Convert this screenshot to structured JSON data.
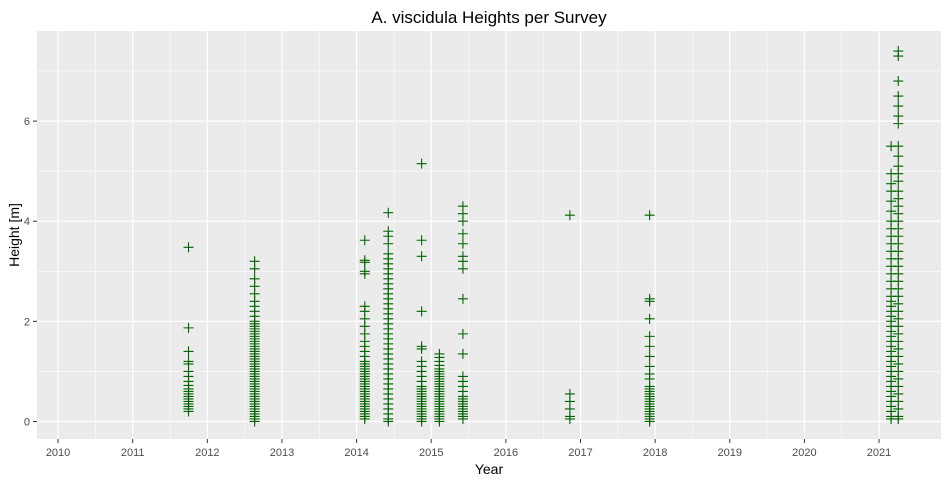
{
  "chart_data": {
    "type": "scatter",
    "title": "A. viscidula Heights per Survey",
    "xlabel": "Year",
    "ylabel": "Height [m]",
    "x_ticks": [
      "2010",
      "2011",
      "2012",
      "2013",
      "2014",
      "2015",
      "2016",
      "2017",
      "2018",
      "2019",
      "2020",
      "2021"
    ],
    "y_ticks": [
      "0",
      "2",
      "4",
      "6"
    ],
    "xlim": [
      "2009-09-20",
      "2021-10-31"
    ],
    "ylim": [
      -0.35,
      7.8
    ],
    "grid": true,
    "legend": "none",
    "marker": "plus",
    "point_color": "#006400",
    "panel_color": "#ebebeb",
    "surveys": [
      {
        "date": "2011-10-01",
        "heights": [
          3.48,
          1.87,
          1.4,
          1.2,
          1.15,
          1.0,
          0.9,
          0.8,
          0.72,
          0.65,
          0.6,
          0.55,
          0.5,
          0.45,
          0.4,
          0.35,
          0.3,
          0.25,
          0.2
        ]
      },
      {
        "date": "2012-08-20",
        "heights": [
          3.2,
          3.05,
          2.85,
          2.7,
          2.55,
          2.4,
          2.3,
          2.2,
          2.1,
          2.0,
          1.95,
          1.9,
          1.85,
          1.8,
          1.75,
          1.7,
          1.65,
          1.6,
          1.55,
          1.5,
          1.45,
          1.4,
          1.35,
          1.3,
          1.25,
          1.2,
          1.15,
          1.1,
          1.05,
          1.0,
          0.95,
          0.9,
          0.85,
          0.8,
          0.75,
          0.7,
          0.65,
          0.6,
          0.55,
          0.5,
          0.45,
          0.4,
          0.35,
          0.3,
          0.25,
          0.2,
          0.15,
          0.1,
          0.05,
          0.0
        ]
      },
      {
        "date": "2014-02-10",
        "heights": [
          3.62,
          3.22,
          3.18,
          3.0,
          2.95,
          2.3,
          2.2,
          2.05,
          1.9,
          1.75,
          1.6,
          1.5,
          1.4,
          1.3,
          1.2,
          1.15,
          1.1,
          1.05,
          1.0,
          0.95,
          0.9,
          0.85,
          0.8,
          0.75,
          0.7,
          0.65,
          0.6,
          0.55,
          0.5,
          0.45,
          0.4,
          0.35,
          0.3,
          0.25,
          0.2,
          0.15,
          0.1,
          0.05
        ]
      },
      {
        "date": "2014-06-05",
        "heights": [
          4.17,
          3.8,
          3.7,
          3.55,
          3.35,
          3.25,
          3.15,
          3.05,
          2.95,
          2.85,
          2.75,
          2.65,
          2.55,
          2.45,
          2.35,
          2.25,
          2.15,
          2.05,
          1.95,
          1.85,
          1.75,
          1.65,
          1.55,
          1.45,
          1.35,
          1.25,
          1.15,
          1.05,
          0.95,
          0.85,
          0.75,
          0.65,
          0.55,
          0.45,
          0.35,
          0.25,
          0.15,
          0.05,
          0.0
        ]
      },
      {
        "date": "2014-11-15",
        "heights": [
          5.15,
          3.62,
          3.3,
          2.2,
          1.5,
          1.45,
          1.2,
          1.1,
          1.0,
          0.9,
          0.8,
          0.7,
          0.65,
          0.6,
          0.55,
          0.5,
          0.45,
          0.4,
          0.35,
          0.3,
          0.25,
          0.2,
          0.15,
          0.1,
          0.05,
          0.0
        ]
      },
      {
        "date": "2015-02-10",
        "heights": [
          1.35,
          1.28,
          1.2,
          1.12,
          1.05,
          1.0,
          0.95,
          0.9,
          0.85,
          0.8,
          0.75,
          0.7,
          0.65,
          0.6,
          0.55,
          0.5,
          0.45,
          0.4,
          0.35,
          0.3,
          0.25,
          0.2,
          0.15,
          0.1,
          0.05,
          0.0
        ]
      },
      {
        "date": "2015-06-05",
        "heights": [
          4.3,
          4.15,
          4.0,
          3.75,
          3.55,
          3.3,
          3.2,
          3.05,
          2.45,
          1.75,
          1.35,
          0.9,
          0.8,
          0.7,
          0.6,
          0.5,
          0.45,
          0.4,
          0.35,
          0.3,
          0.25,
          0.2,
          0.15,
          0.1,
          0.05
        ]
      },
      {
        "date": "2016-11-10",
        "heights": [
          4.12,
          0.55,
          0.4,
          0.25,
          0.1,
          0.05
        ]
      },
      {
        "date": "2017-12-05",
        "heights": [
          4.12,
          2.45,
          2.4,
          2.05,
          1.7,
          1.5,
          1.3,
          1.1,
          0.95,
          0.85,
          0.7,
          0.65,
          0.6,
          0.55,
          0.5,
          0.45,
          0.4,
          0.35,
          0.3,
          0.25,
          0.2,
          0.15,
          0.1,
          0.05,
          0.0
        ]
      },
      {
        "date": "2021-03-01",
        "heights": [
          5.5,
          4.95,
          4.75,
          4.6,
          4.4,
          4.2,
          4.0,
          3.85,
          3.7,
          3.55,
          3.4,
          3.25,
          3.1,
          2.95,
          2.8,
          2.65,
          2.5,
          2.4,
          2.3,
          2.2,
          2.1,
          2.0,
          1.9,
          1.8,
          1.7,
          1.6,
          1.5,
          1.4,
          1.3,
          1.2,
          1.1,
          1.0,
          0.9,
          0.8,
          0.7,
          0.6,
          0.5,
          0.4,
          0.3,
          0.2,
          0.1,
          0.05
        ]
      },
      {
        "date": "2021-04-05",
        "heights": [
          7.4,
          7.3,
          6.8,
          6.5,
          6.3,
          6.1,
          5.95,
          5.5,
          5.3,
          5.1,
          4.95,
          4.8,
          4.6,
          4.45,
          4.3,
          4.15,
          4.0,
          3.85,
          3.7,
          3.55,
          3.4,
          3.25,
          3.1,
          2.95,
          2.8,
          2.65,
          2.5,
          2.35,
          2.2,
          2.05,
          1.9,
          1.75,
          1.6,
          1.45,
          1.3,
          1.15,
          1.0,
          0.85,
          0.7,
          0.55,
          0.4,
          0.25,
          0.1,
          0.05
        ]
      }
    ]
  }
}
